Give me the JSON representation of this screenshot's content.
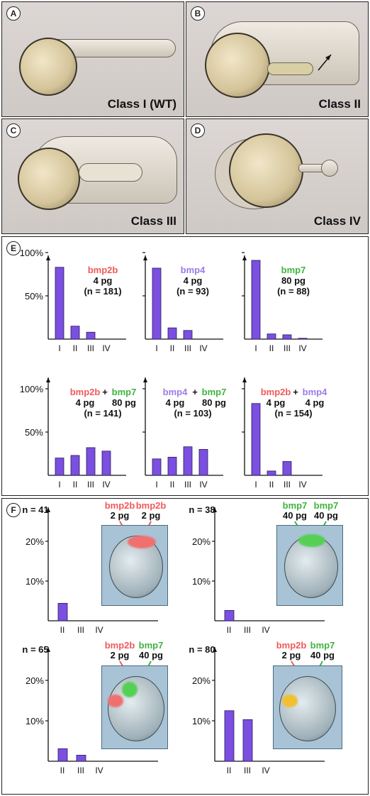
{
  "panels": {
    "A": {
      "letter": "A",
      "label": "Class I (WT)"
    },
    "B": {
      "letter": "B",
      "label": "Class II"
    },
    "C": {
      "letter": "C",
      "label": "Class III"
    },
    "D": {
      "letter": "D",
      "label": "Class IV"
    },
    "E": {
      "letter": "E"
    },
    "F": {
      "letter": "F"
    }
  },
  "colors": {
    "bar": "#7b4fe0",
    "bmp2b": "#f05a5a",
    "bmp4": "#9a7ce8",
    "bmp7": "#3fb43f",
    "text": "#111111"
  },
  "chart_data": [
    {
      "panel": "E",
      "type": "bar",
      "categories": [
        "I",
        "II",
        "III",
        "IV"
      ],
      "values": [
        83,
        15,
        8,
        0
      ],
      "ylim": [
        0,
        100
      ],
      "yticks": [
        "100%",
        "50%"
      ],
      "annotation": [
        {
          "gene": "bmp2b",
          "dose": "4 pg"
        }
      ],
      "n": "(n = 181)"
    },
    {
      "panel": "E",
      "type": "bar",
      "categories": [
        "I",
        "II",
        "III",
        "IV"
      ],
      "values": [
        82,
        13,
        10,
        0
      ],
      "ylim": [
        0,
        100
      ],
      "yticks": [],
      "annotation": [
        {
          "gene": "bmp4",
          "dose": "4 pg"
        }
      ],
      "n": "(n = 93)"
    },
    {
      "panel": "E",
      "type": "bar",
      "categories": [
        "I",
        "II",
        "III",
        "IV"
      ],
      "values": [
        91,
        6,
        5,
        1
      ],
      "ylim": [
        0,
        100
      ],
      "yticks": [],
      "annotation": [
        {
          "gene": "bmp7",
          "dose": "80 pg"
        }
      ],
      "n": "(n = 88)"
    },
    {
      "panel": "E",
      "type": "bar",
      "categories": [
        "I",
        "II",
        "III",
        "IV"
      ],
      "values": [
        20,
        23,
        32,
        28
      ],
      "ylim": [
        0,
        100
      ],
      "yticks": [
        "100%",
        "50%"
      ],
      "annotation": [
        {
          "gene": "bmp2b",
          "dose": "4 pg"
        },
        {
          "gene": "bmp7",
          "dose": "80 pg"
        }
      ],
      "n": "(n = 141)"
    },
    {
      "panel": "E",
      "type": "bar",
      "categories": [
        "I",
        "II",
        "III",
        "IV"
      ],
      "values": [
        19,
        21,
        33,
        30
      ],
      "ylim": [
        0,
        100
      ],
      "yticks": [],
      "annotation": [
        {
          "gene": "bmp4",
          "dose": "4 pg"
        },
        {
          "gene": "bmp7",
          "dose": "80 pg"
        }
      ],
      "n": "(n = 103)"
    },
    {
      "panel": "E",
      "type": "bar",
      "categories": [
        "I",
        "II",
        "III",
        "IV"
      ],
      "values": [
        83,
        5,
        16,
        0
      ],
      "ylim": [
        0,
        100
      ],
      "yticks": [],
      "annotation": [
        {
          "gene": "bmp2b",
          "dose": "4 pg"
        },
        {
          "gene": "bmp4",
          "dose": "4 pg"
        }
      ],
      "n": "(n = 154)"
    },
    {
      "panel": "F",
      "type": "bar",
      "categories": [
        "II",
        "III",
        "IV"
      ],
      "values": [
        4.4,
        0,
        0
      ],
      "ylim": [
        0,
        25
      ],
      "yticks": [
        "20%",
        "10%"
      ],
      "n": "n = 41",
      "injections": [
        {
          "gene": "bmp2b",
          "dose": "2 pg"
        },
        {
          "gene": "bmp2b",
          "dose": "2 pg"
        }
      ]
    },
    {
      "panel": "F",
      "type": "bar",
      "categories": [
        "II",
        "III",
        "IV"
      ],
      "values": [
        2.6,
        0,
        0
      ],
      "ylim": [
        0,
        25
      ],
      "yticks": [
        "20%",
        "10%"
      ],
      "n": "n = 38",
      "injections": [
        {
          "gene": "bmp7",
          "dose": "40 pg"
        },
        {
          "gene": "bmp7",
          "dose": "40 pg"
        }
      ]
    },
    {
      "panel": "F",
      "type": "bar",
      "categories": [
        "II",
        "III",
        "IV"
      ],
      "values": [
        3.1,
        1.5,
        0
      ],
      "ylim": [
        0,
        25
      ],
      "yticks": [
        "20%",
        "10%"
      ],
      "n": "n = 65",
      "injections": [
        {
          "gene": "bmp2b",
          "dose": "2 pg"
        },
        {
          "gene": "bmp7",
          "dose": "40 pg"
        }
      ]
    },
    {
      "panel": "F",
      "type": "bar",
      "categories": [
        "II",
        "III",
        "IV"
      ],
      "values": [
        12.5,
        10.3,
        0
      ],
      "ylim": [
        0,
        25
      ],
      "yticks": [
        "20%",
        "10%"
      ],
      "n": "n = 80",
      "injections": [
        {
          "gene": "bmp2b",
          "dose": "2 pg"
        },
        {
          "gene": "bmp7",
          "dose": "40 pg"
        }
      ]
    }
  ]
}
